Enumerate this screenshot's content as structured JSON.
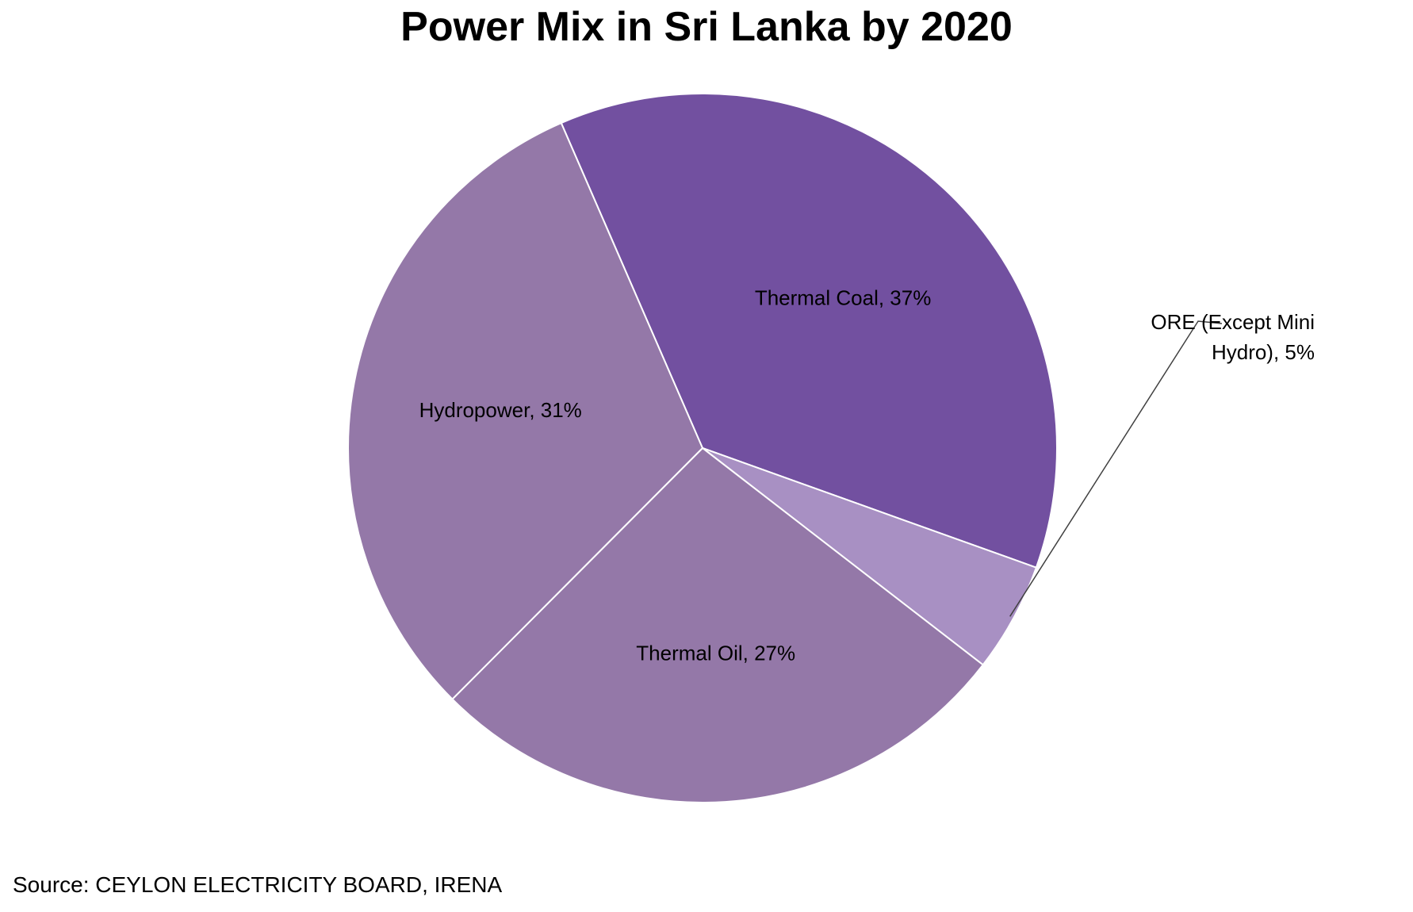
{
  "chart_data": {
    "type": "pie",
    "title": "Power Mix in Sri Lanka by 2020",
    "slices": [
      {
        "label": "Thermal Coal",
        "value": 37,
        "label_text": "Thermal Coal, 37%",
        "color": "#7250A0"
      },
      {
        "label": "ORE (Except Mini Hydro)",
        "value": 5,
        "label_lines": [
          "ORE (Except Mini",
          "Hydro), 5%"
        ],
        "color": "#A890C3"
      },
      {
        "label": "Thermal Oil",
        "value": 27,
        "label_text": "Thermal Oil, 27%",
        "color": "#9478A8"
      },
      {
        "label": "Hydropower",
        "value": 31,
        "label_text": "Hydropower, 31%",
        "color": "#9478A8"
      }
    ],
    "source": "Source: CEYLON ELECTRICITY BOARD, IRENA"
  }
}
